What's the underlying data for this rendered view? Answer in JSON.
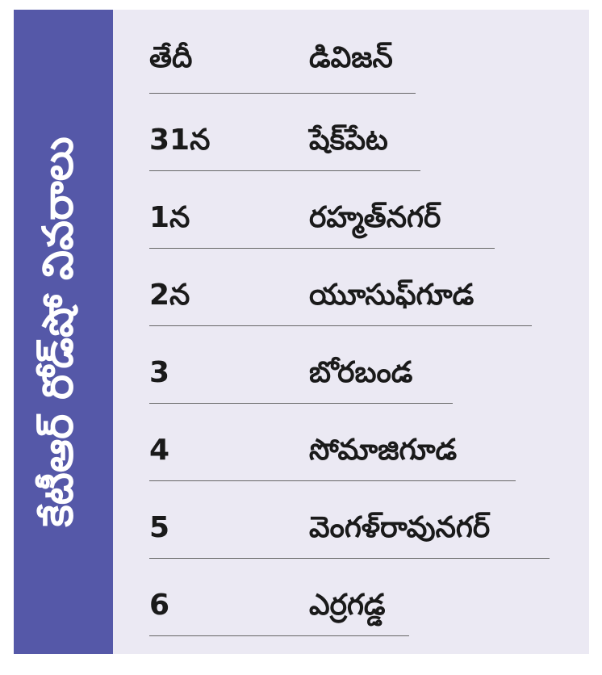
{
  "title": "కేటీఆర్ రోడ్‌షో వివరాలు",
  "header": {
    "date": "తేదీ",
    "division": "డివిజన్"
  },
  "rows": [
    {
      "date": "31న",
      "division": "షేక్‌పేట"
    },
    {
      "date": "1న",
      "division": "రహ్మత్‌నగర్"
    },
    {
      "date": "2న",
      "division": "యూసుఫ్‌గూడ"
    },
    {
      "date": "3",
      "division": "బోరబండ"
    },
    {
      "date": "4",
      "division": "సోమాజిగూడ"
    },
    {
      "date": "5",
      "division": "వెంగళ్‌రావునగర్"
    },
    {
      "date": "6",
      "division": "ఎర్రగడ్డ"
    }
  ],
  "colors": {
    "band": "#5558a8",
    "panel": "#ebe9f3"
  }
}
